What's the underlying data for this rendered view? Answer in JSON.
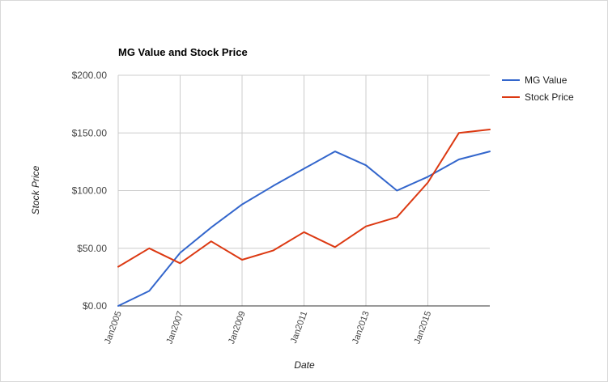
{
  "chart_data": {
    "type": "line",
    "title": "MG Value and Stock Price",
    "xlabel": "Date",
    "ylabel": "Stock Price",
    "x": [
      "Jan2005",
      "Jan2006",
      "Jan2007",
      "Jan2008",
      "Jan2009",
      "Jan2010",
      "Jan2011",
      "Jan2012",
      "Jan2013",
      "Jan2014",
      "Jan2015",
      "Jan2016",
      "Jan2017"
    ],
    "x_tick_labels": [
      "Jan2005",
      "Jan2007",
      "Jan2009",
      "Jan2011",
      "Jan2013",
      "Jan2015"
    ],
    "y_tick_labels": [
      "$0.00",
      "$50.00",
      "$100.00",
      "$150.00",
      "$200.00"
    ],
    "y_ticks": [
      0,
      50,
      100,
      150,
      200
    ],
    "ylim": [
      0,
      200
    ],
    "grid": true,
    "legend_position": "right",
    "series": [
      {
        "name": "MG Value",
        "color": "#3366cc",
        "values": [
          0,
          13,
          46,
          68,
          88,
          104,
          119,
          134,
          122,
          100,
          112,
          127,
          134
        ]
      },
      {
        "name": "Stock Price",
        "color": "#dc3912",
        "values": [
          34,
          50,
          37,
          56,
          40,
          48,
          64,
          51,
          69,
          77,
          107,
          150,
          153
        ]
      }
    ]
  }
}
